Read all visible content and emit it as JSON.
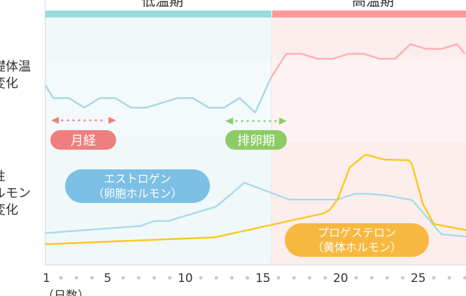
{
  "phases": {
    "low": "低温期",
    "high": "高温期"
  },
  "row_labels": {
    "temperature": [
      "礎体温",
      "変化"
    ],
    "hormone": [
      "性",
      "ルモン",
      "変化"
    ]
  },
  "annotations": {
    "menstruation": "月経",
    "ovulation": "排卵期",
    "estrogen": [
      "エストロゲン",
      "（卵胞ホルモン）"
    ],
    "progesterone": [
      "プロゲステロン",
      "（黄体ホルモン）"
    ]
  },
  "colors": {
    "low": "#9adcdc",
    "high": "#ff9a9a",
    "estrogen": "#a8dcec",
    "progesterone": "#f9c921",
    "menstruation": "#ef7f7f",
    "ovulation": "#8ccc66",
    "estrogen_pill": "#7dc0e5",
    "progesterone_pill": "#f6b83f"
  },
  "chart_data": {
    "type": "line",
    "xlabel": "（日数）",
    "xlim": [
      1,
      28
    ],
    "ylim": [
      0,
      100
    ],
    "x_tick_labels": [
      "1",
      "5",
      "10",
      "15",
      "20",
      "25"
    ],
    "x_ticks": [
      1,
      5,
      10,
      15,
      20,
      25
    ],
    "phase_boundary_day": 15.5,
    "series": [
      {
        "name": "基礎体温",
        "x": [
          1,
          1.5,
          2.5,
          3.5,
          4.5,
          5.5,
          6.5,
          7.5,
          9.5,
          10.5,
          11.5,
          12.5,
          13.5,
          14.5,
          15.5,
          16.5,
          17.5,
          18.5,
          19.5,
          20.5,
          21.5,
          22.5,
          23.5,
          24.5,
          25.5,
          26.5,
          27.5,
          28
        ],
        "y": [
          72.5,
          67.4,
          67.4,
          63.5,
          67.4,
          67.4,
          63.5,
          63.5,
          67.4,
          67.4,
          63.5,
          63.5,
          67.4,
          61.5,
          75.4,
          85.3,
          85.3,
          83.3,
          83.3,
          85.3,
          85.3,
          83.3,
          83.3,
          89.2,
          87.3,
          87.3,
          89.2,
          85.3
        ]
      },
      {
        "name": "エストロゲン",
        "x": [
          1,
          7.1,
          8,
          8.9,
          12,
          13.8,
          16.7,
          19.8,
          20.9,
          21.8,
          22.9,
          24.6,
          26.5,
          28.1
        ],
        "y": [
          12.7,
          15.6,
          17.6,
          17.6,
          23.5,
          33.1,
          26.3,
          26.3,
          28.6,
          28.6,
          28,
          26.1,
          12.2,
          11.3
        ]
      },
      {
        "name": "プロゲステロン",
        "x": [
          1,
          11.9,
          18.9,
          19.3,
          19.8,
          20.6,
          21.6,
          22.8,
          24.4,
          24.6,
          25.3,
          26,
          28.1
        ],
        "y": [
          8.2,
          11,
          20.7,
          22.1,
          26.3,
          39.4,
          44.5,
          42.5,
          42.2,
          40.5,
          24.4,
          16.4,
          13.9
        ]
      }
    ]
  }
}
